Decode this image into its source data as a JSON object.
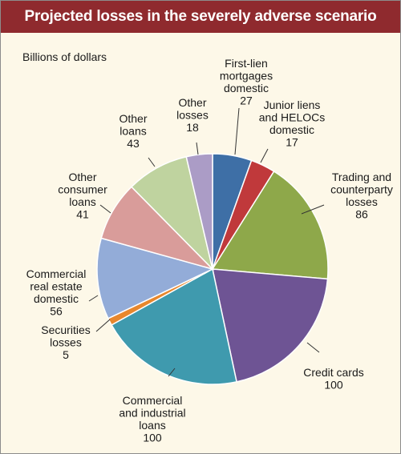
{
  "title": "Projected losses in the severely adverse scenario",
  "chart_data": {
    "type": "pie",
    "title": "Projected losses in the severely adverse scenario",
    "unit_label": "Billions of dollars",
    "start_angle_deg": 0,
    "direction": "clockwise",
    "slices": [
      {
        "label_lines": [
          "First-lien",
          "mortgages",
          "domestic"
        ],
        "value": 27,
        "color": "#3e6fa6"
      },
      {
        "label_lines": [
          "Junior liens",
          "and HELOCs",
          "domestic"
        ],
        "value": 17,
        "color": "#c0393b"
      },
      {
        "label_lines": [
          "Trading and",
          "counterparty",
          "losses"
        ],
        "value": 86,
        "color": "#8ea84a"
      },
      {
        "label_lines": [
          "Credit cards"
        ],
        "value": 100,
        "color": "#6e5494"
      },
      {
        "label_lines": [
          "Commercial",
          "and industrial",
          "loans"
        ],
        "value": 100,
        "color": "#3f9aae"
      },
      {
        "label_lines": [
          "Securities",
          "losses"
        ],
        "value": 5,
        "color": "#e8872d"
      },
      {
        "label_lines": [
          "Commercial",
          "real estate",
          "domestic"
        ],
        "value": 56,
        "color": "#93acd8"
      },
      {
        "label_lines": [
          "Other",
          "consumer",
          "loans"
        ],
        "value": 41,
        "color": "#d99c9a"
      },
      {
        "label_lines": [
          "Other",
          "loans"
        ],
        "value": 43,
        "color": "#bfd39f"
      },
      {
        "label_lines": [
          "Other",
          "losses"
        ],
        "value": 18,
        "color": "#ab9cc6"
      }
    ]
  }
}
